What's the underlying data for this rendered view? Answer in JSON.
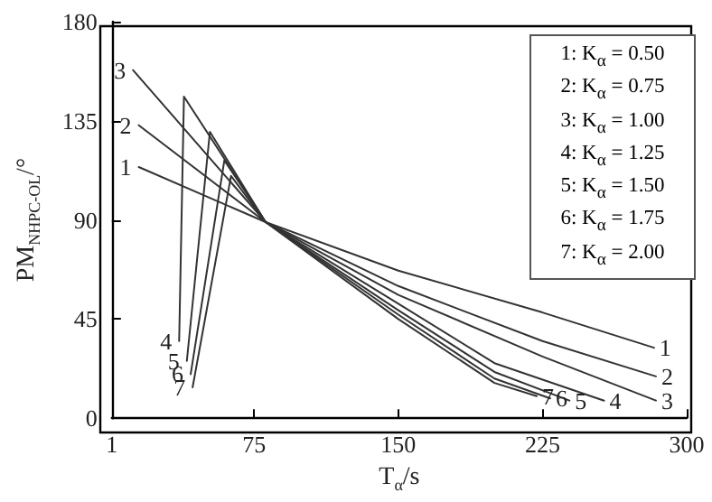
{
  "chart_data": {
    "type": "line",
    "xlabel": "T$_{α}$/s",
    "ylabel": "PM$_{NHPC-OL}$/°",
    "xlim": [
      1,
      300
    ],
    "xticks": [
      1,
      75,
      150,
      225,
      300
    ],
    "ylim": [
      0,
      180
    ],
    "yticks": [
      0,
      45,
      90,
      135,
      180
    ],
    "grid": false,
    "marker": "none",
    "line_style": "solid",
    "annotations": [
      "1: K$_{α}$ = 0.50",
      "2: K$_{α}$ = 0.75",
      "3: K$_{α}$ = 1.00",
      "4: K$_{α}$ = 1.25",
      "5: K$_{α}$ = 1.50",
      "6: K$_{α}$ = 1.75",
      "7: K$_{α}$ = 2.00"
    ],
    "series": [
      {
        "name": "1",
        "color": "#333333",
        "x": [
          15,
          81,
          150,
          225,
          283
        ],
        "values": [
          114,
          89,
          67,
          48,
          32
        ]
      },
      {
        "name": "2",
        "color": "#333333",
        "x": [
          15,
          81,
          150,
          225,
          284
        ],
        "values": [
          133,
          89,
          60,
          35,
          19
        ]
      },
      {
        "name": "3",
        "color": "#333333",
        "x": [
          12,
          81,
          150,
          225,
          284
        ],
        "values": [
          158,
          89,
          56,
          28,
          8
        ]
      },
      {
        "name": "4",
        "color": "#333333",
        "x": [
          36,
          38.5,
          81,
          150,
          200,
          257
        ],
        "values": [
          35,
          146,
          89,
          52,
          25,
          8
        ]
      },
      {
        "name": "5",
        "color": "#333333",
        "x": [
          40,
          52,
          81,
          150,
          200,
          239
        ],
        "values": [
          26,
          130,
          89,
          49,
          21,
          8
        ]
      },
      {
        "name": "6",
        "color": "#333333",
        "x": [
          42,
          59.5,
          81,
          150,
          200,
          229
        ],
        "values": [
          20,
          117,
          89,
          47,
          18,
          9
        ]
      },
      {
        "name": "7",
        "color": "#333333",
        "x": [
          43,
          63,
          81,
          150,
          200,
          222
        ],
        "values": [
          14,
          110,
          89,
          45,
          16,
          10
        ]
      }
    ]
  }
}
